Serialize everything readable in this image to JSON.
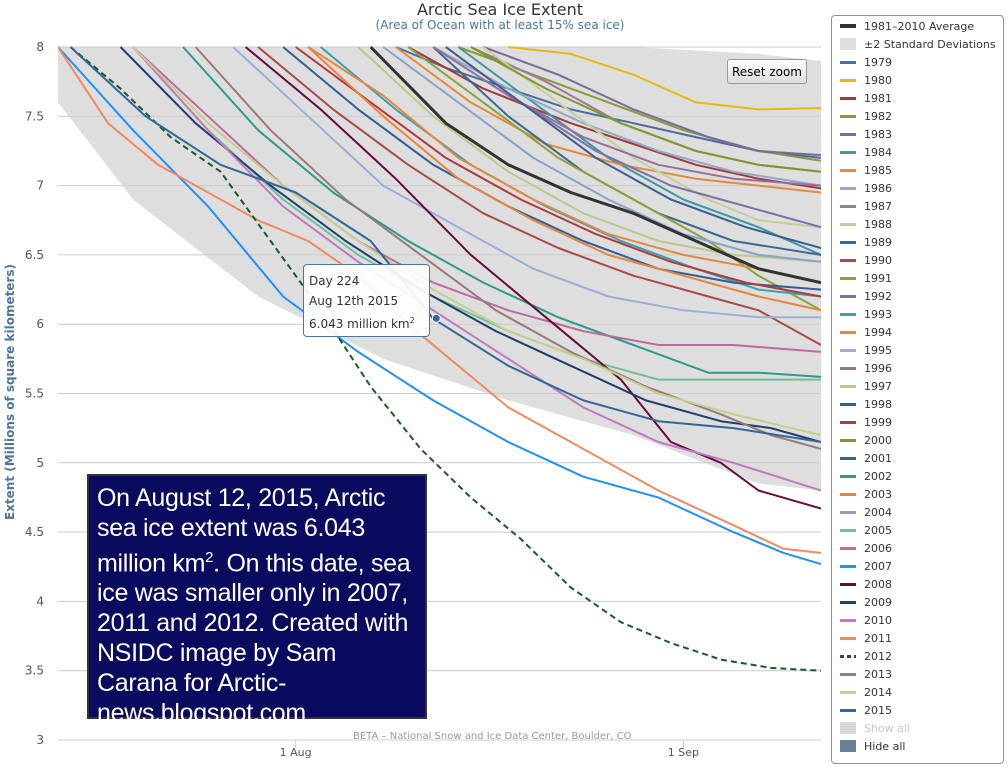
{
  "chart_data": {
    "type": "line",
    "title": "Arctic Sea Ice Extent",
    "subtitle": "(Area of Ocean with at least 15% sea ice)",
    "ylabel": "Extent (Millions of square kilometers)",
    "xlabel": "",
    "ylim": [
      3,
      8
    ],
    "yticks": [
      "3",
      "3.5",
      "4",
      "4.5",
      "5",
      "5.5",
      "6",
      "6.5",
      "7",
      "7.5",
      "8"
    ],
    "x_ticks": [
      {
        "day": 213,
        "label": "1 Aug"
      },
      {
        "day": 244,
        "label": "1 Sep"
      }
    ],
    "xlim": [
      194,
      255
    ],
    "grid": true,
    "legend_position": "right",
    "credit": "BETA – National Snow and Ice Data Center, Boulder, CO",
    "stddev_band": {
      "name": "±2 Standard Deviations",
      "x": [
        194,
        200,
        210,
        220,
        230,
        240,
        250,
        255
      ],
      "upper": [
        8.0,
        8.0,
        8.0,
        8.0,
        8.0,
        8.0,
        7.95,
        7.9
      ],
      "lower": [
        7.6,
        6.9,
        6.2,
        5.75,
        5.45,
        5.2,
        4.85,
        4.8
      ]
    },
    "series": [
      {
        "name": "1981–2010 Average",
        "color": "#333333",
        "width": 3,
        "x": [
          219,
          225,
          230,
          235,
          240,
          245,
          250,
          255
        ],
        "y": [
          8.0,
          7.45,
          7.15,
          6.95,
          6.8,
          6.6,
          6.4,
          6.3
        ]
      },
      {
        "name": "1979",
        "color": "#4b6e9e",
        "x": [
          221,
          225,
          230,
          235,
          240,
          245,
          250,
          255
        ],
        "y": [
          8.0,
          7.85,
          7.7,
          7.55,
          7.45,
          7.35,
          7.25,
          7.2
        ]
      },
      {
        "name": "1980",
        "color": "#e8b910",
        "x": [
          230,
          235,
          240,
          245,
          250,
          255
        ],
        "y": [
          8.0,
          7.95,
          7.8,
          7.6,
          7.55,
          7.56
        ]
      },
      {
        "name": "1981",
        "color": "#a33a3a",
        "x": [
          222,
          228,
          235,
          240,
          245,
          250,
          255
        ],
        "y": [
          8.0,
          7.7,
          7.45,
          7.3,
          7.15,
          7.05,
          6.98
        ]
      },
      {
        "name": "1982",
        "color": "#8a9a3b",
        "x": [
          226,
          232,
          238,
          244,
          250,
          255
        ],
        "y": [
          8.0,
          7.8,
          7.6,
          7.4,
          7.25,
          7.18
        ]
      },
      {
        "name": "1983",
        "color": "#7a6b98",
        "x": [
          228,
          234,
          240,
          246,
          250,
          255
        ],
        "y": [
          8.0,
          7.8,
          7.55,
          7.35,
          7.25,
          7.22
        ]
      },
      {
        "name": "1984",
        "color": "#3a9aa3",
        "x": [
          226,
          232,
          238,
          244,
          250,
          255
        ],
        "y": [
          8.0,
          7.6,
          7.2,
          6.9,
          6.7,
          6.5
        ]
      },
      {
        "name": "1985",
        "color": "#e48a3a",
        "x": [
          221,
          227,
          233,
          239,
          245,
          250,
          255
        ],
        "y": [
          8.0,
          7.6,
          7.3,
          7.15,
          7.05,
          7.0,
          6.95
        ]
      },
      {
        "name": "1986",
        "color": "#93a9c6",
        "x": [
          224,
          230,
          236,
          242,
          248,
          255
        ],
        "y": [
          8.0,
          7.7,
          7.45,
          7.25,
          7.1,
          7.0
        ]
      },
      {
        "name": "1987",
        "color": "#9a7a9a",
        "x": [
          227,
          233,
          239,
          245,
          250,
          255
        ],
        "y": [
          8.0,
          7.75,
          7.45,
          7.25,
          7.15,
          7.1
        ]
      },
      {
        "name": "1988",
        "color": "#c4cf9a",
        "x": [
          228,
          234,
          240,
          246,
          250,
          255
        ],
        "y": [
          8.0,
          7.6,
          7.2,
          6.9,
          6.75,
          6.7
        ]
      },
      {
        "name": "1989",
        "color": "#3a6b8e",
        "x": [
          224,
          230,
          236,
          242,
          248,
          255
        ],
        "y": [
          8.0,
          7.5,
          7.1,
          6.8,
          6.6,
          6.5
        ]
      },
      {
        "name": "1990",
        "color": "#a84a4a",
        "x": [
          210,
          216,
          222,
          228,
          234,
          240,
          246,
          250,
          255
        ],
        "y": [
          8.0,
          7.55,
          7.15,
          6.8,
          6.55,
          6.35,
          6.2,
          6.1,
          5.85
        ]
      },
      {
        "name": "1991",
        "color": "#8da23a",
        "x": [
          222,
          228,
          234,
          240,
          246,
          250,
          255
        ],
        "y": [
          8.0,
          7.6,
          7.2,
          6.9,
          6.6,
          6.35,
          6.1
        ]
      },
      {
        "name": "1992",
        "color": "#7f71a6",
        "x": [
          225,
          231,
          237,
          243,
          249,
          255
        ],
        "y": [
          8.0,
          7.6,
          7.25,
          7.0,
          6.85,
          6.7
        ]
      },
      {
        "name": "1993",
        "color": "#3aa0b4",
        "x": [
          215,
          221,
          227,
          233,
          239,
          245,
          250,
          255
        ],
        "y": [
          8.0,
          7.55,
          7.15,
          6.85,
          6.6,
          6.4,
          6.25,
          6.2
        ]
      },
      {
        "name": "1994",
        "color": "#e8893a",
        "x": [
          214,
          220,
          226,
          232,
          238,
          244,
          250,
          255
        ],
        "y": [
          8.0,
          7.65,
          7.2,
          6.9,
          6.65,
          6.5,
          6.4,
          6.3
        ]
      },
      {
        "name": "1995",
        "color": "#9bb0d6",
        "x": [
          208,
          214,
          220,
          226,
          232,
          238,
          244,
          250,
          255
        ],
        "y": [
          8.0,
          7.5,
          7.0,
          6.7,
          6.4,
          6.2,
          6.1,
          6.05,
          6.05
        ]
      },
      {
        "name": "1996",
        "color": "#9a6e9a",
        "x": [
          224,
          230,
          236,
          242,
          248,
          255
        ],
        "y": [
          8.0,
          7.65,
          7.35,
          7.15,
          7.05,
          7.0
        ]
      },
      {
        "name": "1997",
        "color": "#bcc98a",
        "x": [
          218,
          224,
          230,
          236,
          242,
          248,
          255
        ],
        "y": [
          8.0,
          7.5,
          7.1,
          6.8,
          6.6,
          6.5,
          6.45
        ]
      },
      {
        "name": "1998",
        "color": "#2f5f96",
        "x": [
          212,
          218,
          224,
          230,
          236,
          242,
          248,
          255
        ],
        "y": [
          8.0,
          7.55,
          7.15,
          6.85,
          6.6,
          6.4,
          6.3,
          6.25
        ]
      },
      {
        "name": "1999",
        "color": "#b33a3a",
        "x": [
          213,
          219,
          225,
          231,
          237,
          243,
          249,
          255
        ],
        "y": [
          8.0,
          7.6,
          7.2,
          6.9,
          6.65,
          6.45,
          6.3,
          6.2
        ]
      },
      {
        "name": "2000",
        "color": "#7f9a2a",
        "x": [
          227,
          233,
          239,
          245,
          250,
          255
        ],
        "y": [
          8.0,
          7.7,
          7.45,
          7.25,
          7.15,
          7.1
        ]
      },
      {
        "name": "2001",
        "color": "#3a5f8f",
        "x": [
          225,
          231,
          237,
          243,
          249,
          255
        ],
        "y": [
          8.0,
          7.6,
          7.2,
          6.9,
          6.7,
          6.55
        ]
      },
      {
        "name": "2002",
        "color": "#2f9a8a",
        "x": [
          204,
          210,
          216,
          222,
          228,
          234,
          240,
          246,
          250,
          255
        ],
        "y": [
          8.0,
          7.4,
          6.95,
          6.6,
          6.3,
          6.05,
          5.85,
          5.65,
          5.65,
          5.62
        ]
      },
      {
        "name": "2003",
        "color": "#e8853a",
        "x": [
          214,
          220,
          226,
          232,
          238,
          244,
          250,
          255
        ],
        "y": [
          8.0,
          7.5,
          7.05,
          6.75,
          6.5,
          6.35,
          6.2,
          6.1
        ]
      },
      {
        "name": "2004",
        "color": "#8aa3c8",
        "x": [
          220,
          226,
          232,
          238,
          244,
          250,
          255
        ],
        "y": [
          8.0,
          7.6,
          7.2,
          6.9,
          6.65,
          6.5,
          6.45
        ]
      },
      {
        "name": "2005",
        "color": "#6fbf9a",
        "x": [
          200,
          206,
          212,
          218,
          224,
          230,
          236,
          242,
          248,
          255
        ],
        "y": [
          8.0,
          7.4,
          6.9,
          6.5,
          6.2,
          5.95,
          5.75,
          5.6,
          5.6,
          5.6
        ]
      },
      {
        "name": "2006",
        "color": "#c06aa0",
        "x": [
          200,
          206,
          212,
          218,
          224,
          230,
          236,
          242,
          248,
          255
        ],
        "y": [
          8.0,
          7.5,
          7.0,
          6.6,
          6.3,
          6.1,
          5.95,
          5.85,
          5.85,
          5.8
        ]
      },
      {
        "name": "2007",
        "color": "#1e90ff",
        "x": [
          194,
          200,
          206,
          212,
          218,
          224,
          230,
          236,
          242,
          248,
          252,
          255
        ],
        "y": [
          8.0,
          7.4,
          6.85,
          6.2,
          5.8,
          5.45,
          5.15,
          4.9,
          4.75,
          4.5,
          4.35,
          4.27
        ]
      },
      {
        "name": "2008",
        "color": "#6a0a3a",
        "x": [
          209,
          215,
          221,
          227,
          233,
          239,
          243,
          247,
          250,
          255
        ],
        "y": [
          8.0,
          7.55,
          7.05,
          6.5,
          6.05,
          5.6,
          5.15,
          5.0,
          4.8,
          4.67
        ]
      },
      {
        "name": "2009",
        "color": "#1f3f6e",
        "x": [
          199,
          205,
          211,
          217,
          223,
          229,
          235,
          241,
          247,
          251,
          255
        ],
        "y": [
          8.0,
          7.45,
          7.0,
          6.6,
          6.25,
          5.95,
          5.7,
          5.45,
          5.3,
          5.25,
          5.15
        ]
      },
      {
        "name": "2010",
        "color": "#c07ac0",
        "x": [
          200,
          206,
          212,
          218,
          224,
          230,
          236,
          242,
          248,
          255
        ],
        "y": [
          8.0,
          7.4,
          6.85,
          6.45,
          6.1,
          5.75,
          5.4,
          5.15,
          5.0,
          4.8
        ]
      },
      {
        "name": "2011",
        "color": "#f28a60",
        "x": [
          194,
          198,
          202,
          206,
          210,
          214,
          218,
          222,
          226,
          230,
          236,
          242,
          248,
          252,
          255
        ],
        "y": [
          8.0,
          7.45,
          7.15,
          6.95,
          6.75,
          6.6,
          6.35,
          6.0,
          5.7,
          5.4,
          5.1,
          4.8,
          4.55,
          4.38,
          4.35
        ]
      },
      {
        "name": "2012",
        "color": "#1a5a2a",
        "dash": true,
        "x": [
          195,
          199,
          203,
          207,
          211,
          215,
          219,
          223,
          227,
          231,
          235,
          239,
          243,
          247,
          251,
          255
        ],
        "y": [
          8.0,
          7.7,
          7.35,
          7.1,
          6.6,
          6.1,
          5.55,
          5.1,
          4.75,
          4.45,
          4.1,
          3.85,
          3.7,
          3.58,
          3.52,
          3.5
        ]
      },
      {
        "name": "2013",
        "color": "#9a7a7a",
        "x": [
          205,
          211,
          217,
          223,
          229,
          235,
          241,
          247,
          251,
          255
        ],
        "y": [
          8.0,
          7.4,
          6.9,
          6.5,
          6.1,
          5.8,
          5.55,
          5.35,
          5.2,
          5.1
        ]
      },
      {
        "name": "2014",
        "color": "#c4cf8a",
        "x": [
          200,
          206,
          212,
          218,
          224,
          230,
          236,
          242,
          248,
          255
        ],
        "y": [
          8.0,
          7.45,
          7.0,
          6.6,
          6.25,
          5.95,
          5.75,
          5.5,
          5.35,
          5.2
        ]
      },
      {
        "name": "2015",
        "color": "#336699",
        "x": [
          195,
          201,
          207,
          213,
          219,
          224,
          230,
          236,
          242,
          248,
          255
        ],
        "y": [
          8.0,
          7.5,
          7.15,
          6.95,
          6.6,
          6.04,
          5.7,
          5.45,
          5.3,
          5.25,
          5.15
        ]
      }
    ],
    "tooltip": {
      "day": 224,
      "value": 6.043,
      "line1": "Day 224",
      "line2": "Aug 12th 2015",
      "line3": "6.043 million km",
      "line3_sup": "2"
    }
  },
  "legend": {
    "average_label": "1981–2010 Average",
    "stddev_label": "±2 Standard Deviations",
    "show_all": "Show all",
    "hide_all": "Hide all"
  },
  "controls": {
    "reset_zoom": "Reset zoom"
  },
  "annotation": {
    "text_before_sup": "On August 12, 2015, Arctic sea ice extent was 6.043 million km",
    "sup": "2",
    "text_after_sup": ". On this date, sea ice was smaller only in 2007, 2011 and 2012. Created with NSIDC image by Sam Carana for Arctic-news.blogspot.com"
  },
  "colors": {
    "band": "#dedede",
    "grid": "#cccccc",
    "axis_label": "#4d759e",
    "note_bg": "#0a0a5e"
  }
}
